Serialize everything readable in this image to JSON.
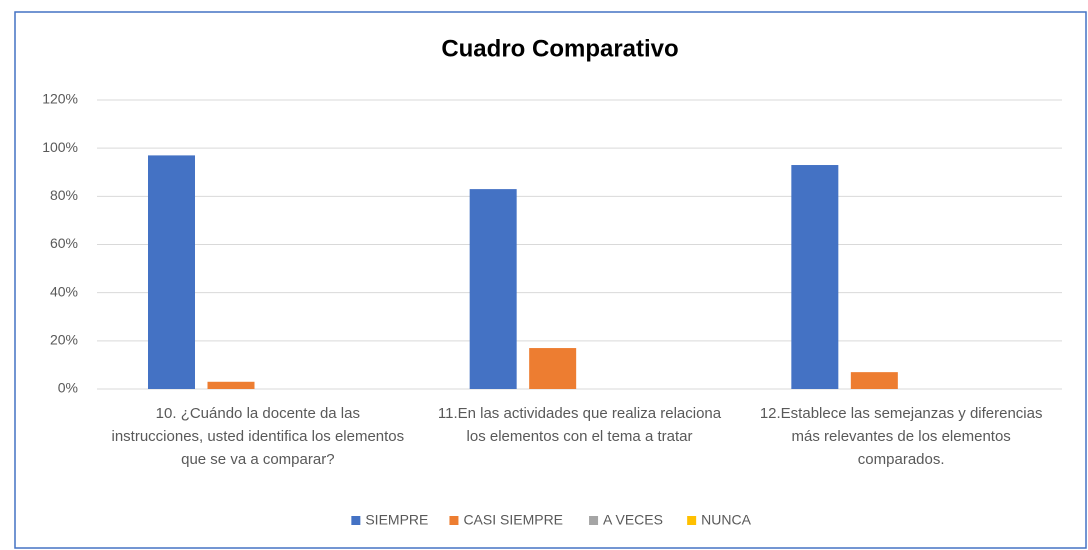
{
  "chart_data": {
    "type": "bar",
    "title": "Cuadro Comparativo",
    "categories": [
      "10. ¿Cuándo la docente da las instrucciones, usted identifica los elementos que se va a comparar?",
      "11.En las actividades que realiza relaciona los elementos con el tema a tratar",
      "12.Establece las semejanzas y diferencias más relevantes de los elementos comparados."
    ],
    "series": [
      {
        "name": "SIEMPRE",
        "color": "#4472c4",
        "values": [
          97,
          83,
          93
        ]
      },
      {
        "name": "CASI SIEMPRE",
        "color": "#ed7d31",
        "values": [
          3,
          17,
          7
        ]
      },
      {
        "name": "A VECES",
        "color": "#a5a5a5",
        "values": [
          0,
          0,
          0
        ]
      },
      {
        "name": "NUNCA",
        "color": "#ffc000",
        "values": [
          0,
          0,
          0
        ]
      }
    ],
    "ylim": [
      0,
      120
    ],
    "yticks": [
      {
        "value": 0,
        "label": "0%"
      },
      {
        "value": 20,
        "label": "20%"
      },
      {
        "value": 40,
        "label": "40%"
      },
      {
        "value": 60,
        "label": "60%"
      },
      {
        "value": 80,
        "label": "80%"
      },
      {
        "value": 100,
        "label": "100%"
      },
      {
        "value": 120,
        "label": "120%"
      }
    ],
    "grid": true,
    "legend": "bottom"
  }
}
